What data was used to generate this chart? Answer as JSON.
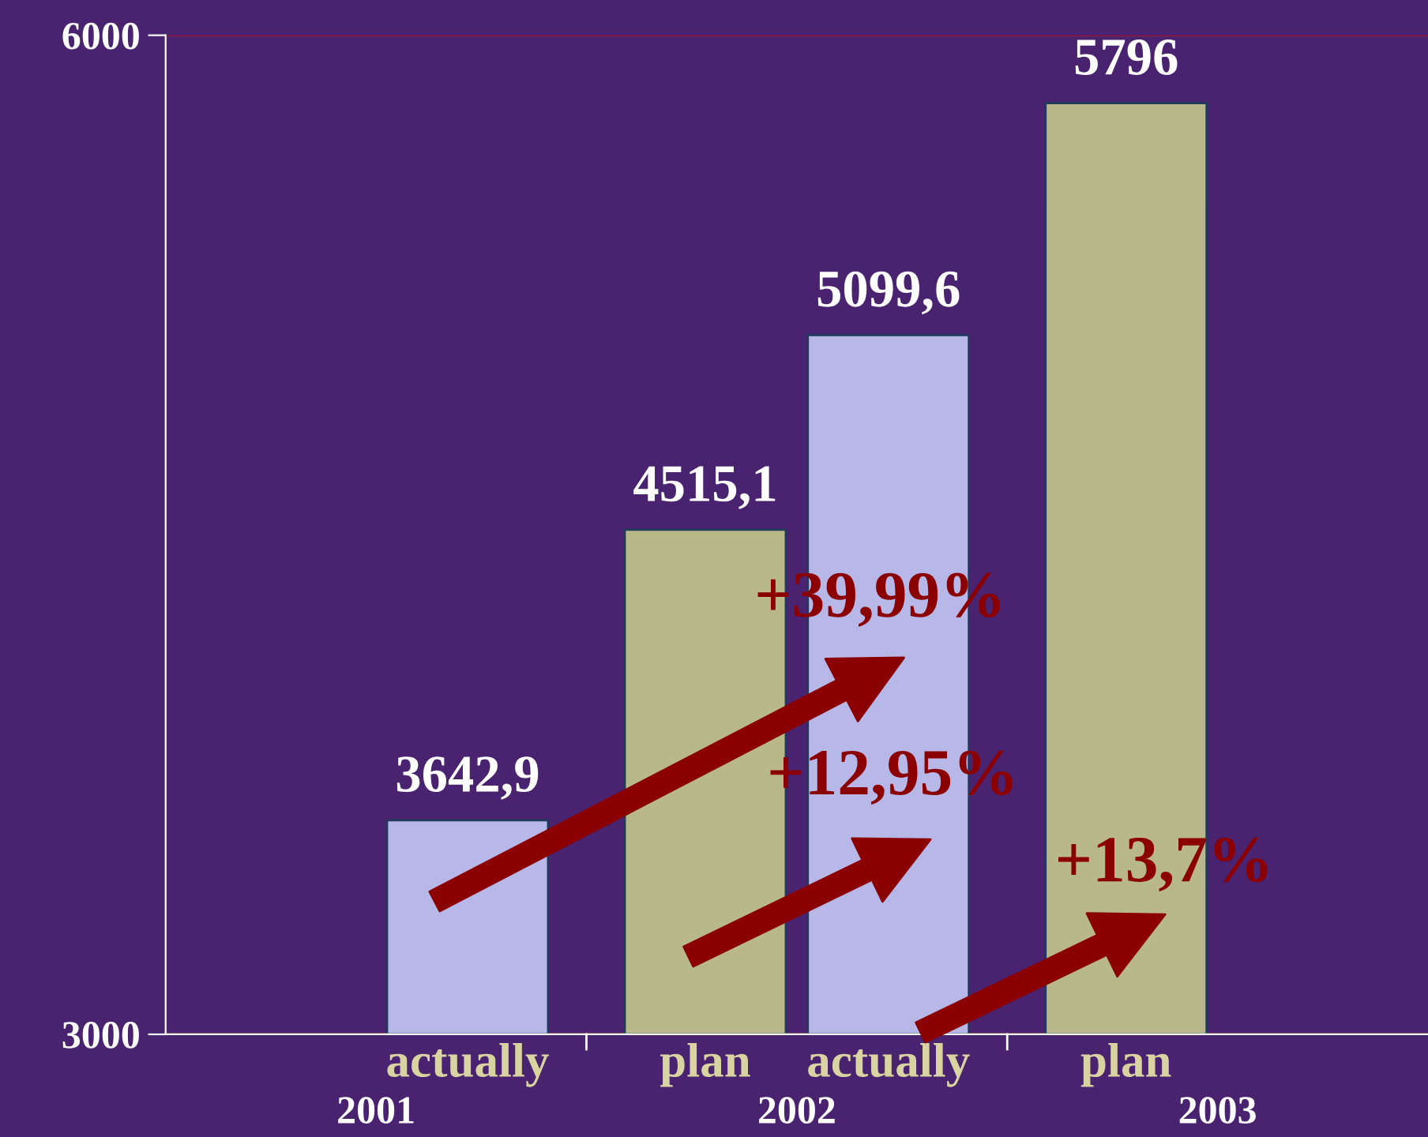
{
  "chart_data": {
    "type": "bar",
    "categories": [
      "2001",
      "2002",
      "2003"
    ],
    "series": [
      {
        "name": "plan",
        "color": "#b9b88a",
        "values": [
          null,
          4515.1,
          5796
        ],
        "value_labels": [
          null,
          "4515,1",
          "5796"
        ]
      },
      {
        "name": "actually",
        "color": "#b8b8e8",
        "values": [
          3642.9,
          5099.6,
          null
        ],
        "value_labels": [
          "3642,9",
          "5099,6",
          null
        ]
      }
    ],
    "ylim": [
      3000,
      6000
    ],
    "yticks": [
      3000,
      6000
    ],
    "grid": "y",
    "legend": false,
    "annotations": [
      "+39,99%",
      "+12,95%",
      "+13,7%"
    ]
  }
}
